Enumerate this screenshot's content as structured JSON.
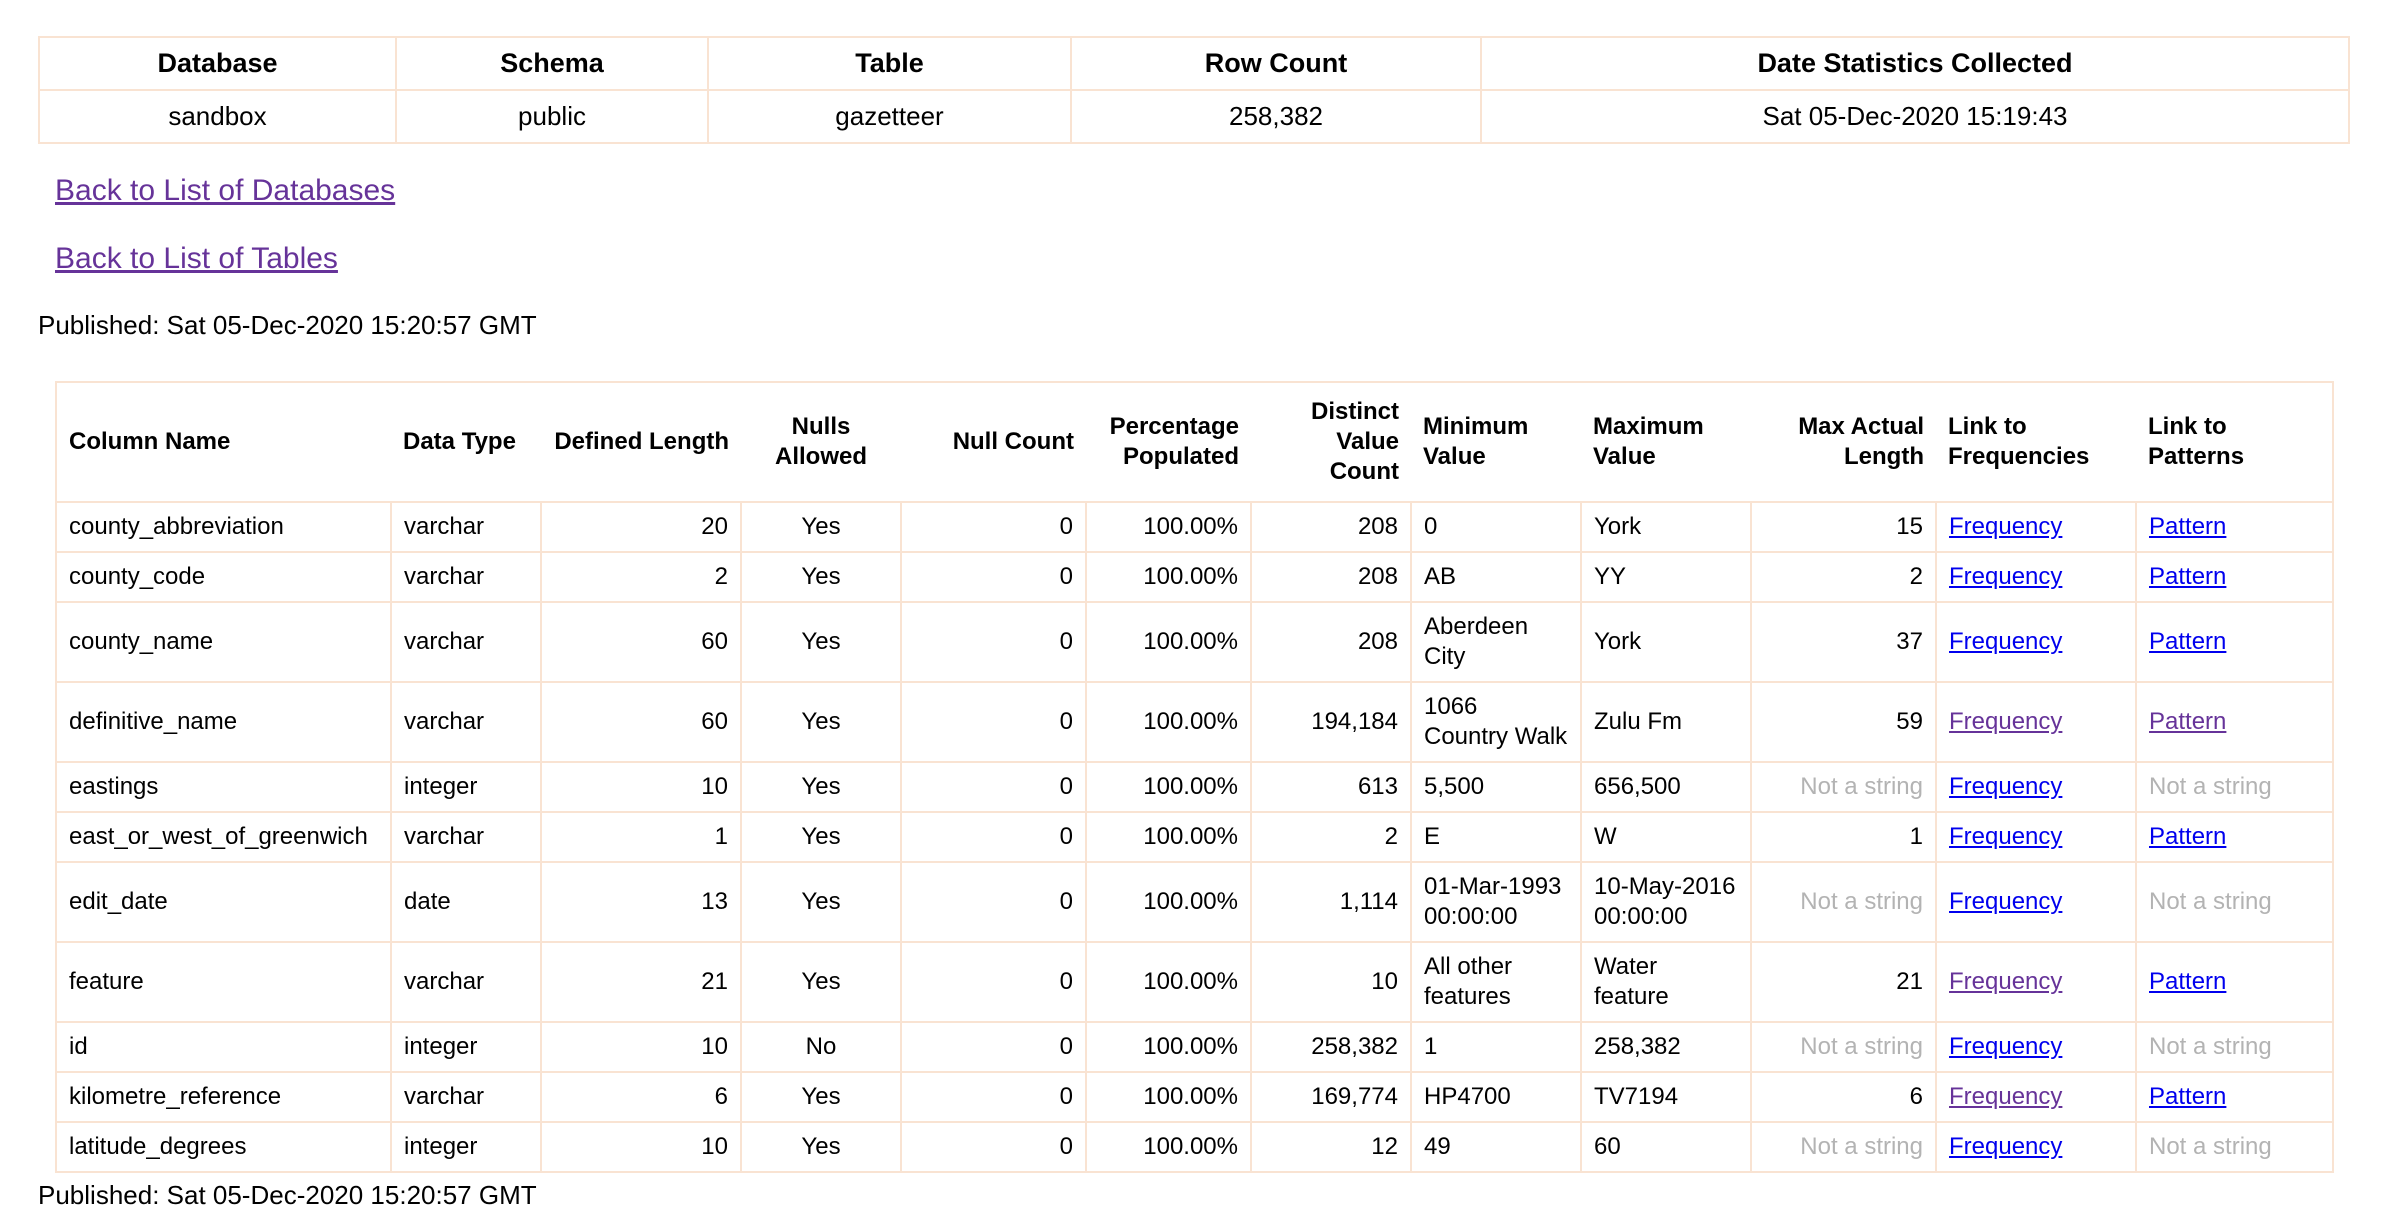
{
  "colors": {
    "table_border": "#f9e3d2",
    "link_blue": "#0000ee",
    "link_visited_purple": "#663399",
    "not_a_string_gray": "#b3b3b3"
  },
  "strings": {
    "not_a_string": "Not a string"
  },
  "summary_table": {
    "headers": [
      "Database",
      "Schema",
      "Table",
      "Row Count",
      "Date Statistics Collected"
    ],
    "values": [
      "sandbox",
      "public",
      "gazetteer",
      "258,382",
      "Sat 05-Dec-2020 15:19:43"
    ]
  },
  "nav": {
    "back_to_databases": "Back to List of Databases",
    "back_to_tables": "Back to List of Tables"
  },
  "published_top": "Published: Sat 05-Dec-2020 15:20:57 GMT",
  "published_bottom": "Published: Sat 05-Dec-2020 15:20:57 GMT",
  "columns_table": {
    "headers": [
      "Column Name",
      "Data Type",
      "Defined Length",
      "Nulls Allowed",
      "Null Count",
      "Percentage Populated",
      "Distinct Value Count",
      "Minimum Value",
      "Maximum Value",
      "Max Actual Length",
      "Link to Frequencies",
      "Link to Patterns"
    ],
    "rows": [
      {
        "column_name": "county_abbreviation",
        "data_type": "varchar",
        "defined_length": "20",
        "nulls_allowed": "Yes",
        "null_count": "0",
        "percentage_populated": "100.00%",
        "distinct_value_count": "208",
        "minimum_value": "0",
        "maximum_value": "York",
        "max_actual_length": "15",
        "frequency": {
          "label": "Frequency",
          "visited": false
        },
        "pattern": {
          "label": "Pattern",
          "visited": false
        }
      },
      {
        "column_name": "county_code",
        "data_type": "varchar",
        "defined_length": "2",
        "nulls_allowed": "Yes",
        "null_count": "0",
        "percentage_populated": "100.00%",
        "distinct_value_count": "208",
        "minimum_value": "AB",
        "maximum_value": "YY",
        "max_actual_length": "2",
        "frequency": {
          "label": "Frequency",
          "visited": false
        },
        "pattern": {
          "label": "Pattern",
          "visited": false
        }
      },
      {
        "column_name": "county_name",
        "data_type": "varchar",
        "defined_length": "60",
        "nulls_allowed": "Yes",
        "null_count": "0",
        "percentage_populated": "100.00%",
        "distinct_value_count": "208",
        "minimum_value": "Aberdeen City",
        "maximum_value": "York",
        "max_actual_length": "37",
        "frequency": {
          "label": "Frequency",
          "visited": false
        },
        "pattern": {
          "label": "Pattern",
          "visited": false
        }
      },
      {
        "column_name": "definitive_name",
        "data_type": "varchar",
        "defined_length": "60",
        "nulls_allowed": "Yes",
        "null_count": "0",
        "percentage_populated": "100.00%",
        "distinct_value_count": "194,184",
        "minimum_value": "1066 Country Walk",
        "maximum_value": "Zulu Fm",
        "max_actual_length": "59",
        "frequency": {
          "label": "Frequency",
          "visited": true
        },
        "pattern": {
          "label": "Pattern",
          "visited": true
        }
      },
      {
        "column_name": "eastings",
        "data_type": "integer",
        "defined_length": "10",
        "nulls_allowed": "Yes",
        "null_count": "0",
        "percentage_populated": "100.00%",
        "distinct_value_count": "613",
        "minimum_value": "5,500",
        "maximum_value": "656,500",
        "max_actual_length": "Not a string",
        "frequency": {
          "label": "Frequency",
          "visited": false
        },
        "pattern": {
          "label": "Not a string",
          "muted": true
        }
      },
      {
        "column_name": "east_or_west_of_greenwich",
        "data_type": "varchar",
        "defined_length": "1",
        "nulls_allowed": "Yes",
        "null_count": "0",
        "percentage_populated": "100.00%",
        "distinct_value_count": "2",
        "minimum_value": "E",
        "maximum_value": "W",
        "max_actual_length": "1",
        "frequency": {
          "label": "Frequency",
          "visited": false
        },
        "pattern": {
          "label": "Pattern",
          "visited": false
        }
      },
      {
        "column_name": "edit_date",
        "data_type": "date",
        "defined_length": "13",
        "nulls_allowed": "Yes",
        "null_count": "0",
        "percentage_populated": "100.00%",
        "distinct_value_count": "1,114",
        "minimum_value": "01-Mar-1993 00:00:00",
        "maximum_value": "10-May-2016 00:00:00",
        "max_actual_length": "Not a string",
        "frequency": {
          "label": "Frequency",
          "visited": false
        },
        "pattern": {
          "label": "Not a string",
          "muted": true
        }
      },
      {
        "column_name": "feature",
        "data_type": "varchar",
        "defined_length": "21",
        "nulls_allowed": "Yes",
        "null_count": "0",
        "percentage_populated": "100.00%",
        "distinct_value_count": "10",
        "minimum_value": "All other features",
        "maximum_value": "Water feature",
        "max_actual_length": "21",
        "frequency": {
          "label": "Frequency",
          "visited": true
        },
        "pattern": {
          "label": "Pattern",
          "visited": false
        }
      },
      {
        "column_name": "id",
        "data_type": "integer",
        "defined_length": "10",
        "nulls_allowed": "No",
        "null_count": "0",
        "percentage_populated": "100.00%",
        "distinct_value_count": "258,382",
        "minimum_value": "1",
        "maximum_value": "258,382",
        "max_actual_length": "Not a string",
        "frequency": {
          "label": "Frequency",
          "visited": false
        },
        "pattern": {
          "label": "Not a string",
          "muted": true
        }
      },
      {
        "column_name": "kilometre_reference",
        "data_type": "varchar",
        "defined_length": "6",
        "nulls_allowed": "Yes",
        "null_count": "0",
        "percentage_populated": "100.00%",
        "distinct_value_count": "169,774",
        "minimum_value": "HP4700",
        "maximum_value": "TV7194",
        "max_actual_length": "6",
        "frequency": {
          "label": "Frequency",
          "visited": true
        },
        "pattern": {
          "label": "Pattern",
          "visited": false
        }
      },
      {
        "column_name": "latitude_degrees",
        "data_type": "integer",
        "defined_length": "10",
        "nulls_allowed": "Yes",
        "null_count": "0",
        "percentage_populated": "100.00%",
        "distinct_value_count": "12",
        "minimum_value": "49",
        "maximum_value": "60",
        "max_actual_length": "Not a string",
        "frequency": {
          "label": "Frequency",
          "visited": false
        },
        "pattern": {
          "label": "Not a string",
          "muted": true
        }
      }
    ]
  }
}
